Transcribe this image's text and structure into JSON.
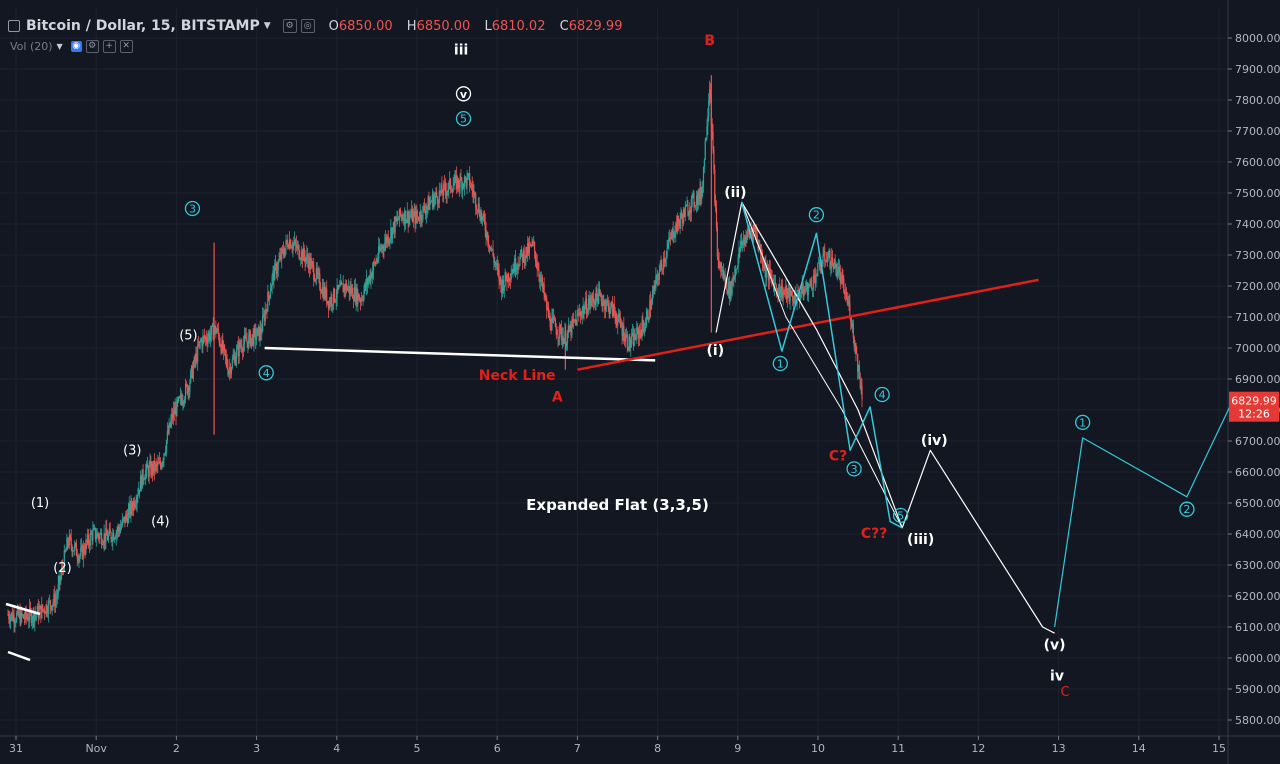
{
  "header": {
    "symbol": "Bitcoin / Dollar, 15, BITSTAMP",
    "open_key": "O",
    "open": "6850.00",
    "high_key": "H",
    "high": "6850.00",
    "low_key": "L",
    "low": "6810.02",
    "close_key": "C",
    "close": "6829.99"
  },
  "volume": {
    "label": "Vol (20)"
  },
  "price_tag": {
    "price": "6829.99",
    "countdown": "12:26"
  },
  "colors": {
    "background": "#131722",
    "up": "#26a69a",
    "down": "#ef5350",
    "neckline": "#ffffff",
    "trendline": "#e0201b",
    "wave_cyan": "#35c8d8",
    "wave_white": "#ffffff",
    "label_red": "#e0201b",
    "axis_text": "#b2b5be"
  },
  "chart_data": {
    "type": "candlestick",
    "title": "",
    "xlabel": "",
    "ylabel": "",
    "ylim": [
      5750,
      8050
    ],
    "xlim": [
      -0.3,
      14.97
    ],
    "y_ticks": [
      "8000.00",
      "7900.00",
      "7800.00",
      "7700.00",
      "7600.00",
      "7500.00",
      "7400.00",
      "7300.00",
      "7200.00",
      "7100.00",
      "7000.00",
      "6900.00",
      "6800.00",
      "6700.00",
      "6600.00",
      "6500.00",
      "6400.00",
      "6300.00",
      "6200.00",
      "6100.00",
      "6000.00",
      "5900.00",
      "5800.00"
    ],
    "x_ticks": [
      {
        "label": "31",
        "x": -0.2
      },
      {
        "label": "Nov",
        "x": 0.8
      },
      {
        "label": "2",
        "x": 1.8
      },
      {
        "label": "3",
        "x": 2.8
      },
      {
        "label": "4",
        "x": 3.8
      },
      {
        "label": "5",
        "x": 4.8
      },
      {
        "label": "6",
        "x": 5.8
      },
      {
        "label": "7",
        "x": 6.8
      },
      {
        "label": "8",
        "x": 7.8
      },
      {
        "label": "9",
        "x": 8.8
      },
      {
        "label": "10",
        "x": 9.8
      },
      {
        "label": "11",
        "x": 10.8
      },
      {
        "label": "12",
        "x": 11.8
      },
      {
        "label": "13",
        "x": 12.8
      },
      {
        "label": "14",
        "x": 13.8
      },
      {
        "label": "15",
        "x": 14.8
      }
    ],
    "grid": true,
    "price_path": [
      [
        -0.3,
        6140
      ],
      [
        -0.1,
        6130
      ],
      [
        0.1,
        6150
      ],
      [
        0.3,
        6190
      ],
      [
        0.45,
        6380
      ],
      [
        0.6,
        6330
      ],
      [
        0.75,
        6400
      ],
      [
        0.95,
        6390
      ],
      [
        1.1,
        6420
      ],
      [
        1.25,
        6490
      ],
      [
        1.4,
        6600
      ],
      [
        1.6,
        6620
      ],
      [
        1.75,
        6780
      ],
      [
        1.95,
        6880
      ],
      [
        2.1,
        7020
      ],
      [
        2.3,
        7060
      ],
      [
        2.45,
        6930
      ],
      [
        2.6,
        7010
      ],
      [
        2.85,
        7050
      ],
      [
        3.0,
        7230
      ],
      [
        3.2,
        7350
      ],
      [
        3.45,
        7280
      ],
      [
        3.7,
        7150
      ],
      [
        3.9,
        7200
      ],
      [
        4.1,
        7160
      ],
      [
        4.35,
        7320
      ],
      [
        4.6,
        7430
      ],
      [
        4.8,
        7420
      ],
      [
        5.0,
        7480
      ],
      [
        5.25,
        7530
      ],
      [
        5.45,
        7540
      ],
      [
        5.65,
        7390
      ],
      [
        5.85,
        7200
      ],
      [
        6.05,
        7280
      ],
      [
        6.25,
        7330
      ],
      [
        6.45,
        7090
      ],
      [
        6.65,
        7030
      ],
      [
        6.85,
        7120
      ],
      [
        7.05,
        7170
      ],
      [
        7.25,
        7120
      ],
      [
        7.45,
        7010
      ],
      [
        7.65,
        7080
      ],
      [
        7.8,
        7230
      ],
      [
        8.0,
        7380
      ],
      [
        8.2,
        7460
      ],
      [
        8.35,
        7500
      ],
      [
        8.45,
        7860
      ],
      [
        8.55,
        7280
      ],
      [
        8.7,
        7180
      ],
      [
        8.85,
        7340
      ],
      [
        9.0,
        7390
      ],
      [
        9.15,
        7250
      ],
      [
        9.3,
        7190
      ],
      [
        9.5,
        7160
      ],
      [
        9.7,
        7200
      ],
      [
        9.9,
        7300
      ],
      [
        10.05,
        7250
      ],
      [
        10.2,
        7120
      ],
      [
        10.35,
        6850
      ]
    ],
    "spikes": [
      {
        "x": 2.27,
        "high": 7340,
        "low": 6720
      },
      {
        "x": 8.47,
        "high": 7880,
        "low": 7050
      },
      {
        "x": 6.65,
        "high": 7070,
        "low": 6930
      }
    ],
    "neckline": [
      [
        2.9,
        7000
      ],
      [
        7.77,
        6960
      ]
    ],
    "trendline": [
      [
        6.8,
        6930
      ],
      [
        12.55,
        7220
      ]
    ],
    "projection_white": [
      [
        8.53,
        7050
      ],
      [
        8.85,
        7470
      ],
      [
        9.78,
        7060
      ],
      [
        10.3,
        6800
      ],
      [
        10.85,
        6420
      ],
      [
        11.2,
        6670
      ],
      [
        12.6,
        6100
      ],
      [
        12.75,
        6080
      ]
    ],
    "projection_white_upper": [
      [
        8.85,
        7470
      ],
      [
        9.4,
        7100
      ],
      [
        10.1,
        6800
      ],
      [
        10.85,
        6420
      ]
    ],
    "projection_cyan": [
      [
        8.85,
        7470
      ],
      [
        9.35,
        6990
      ],
      [
        9.78,
        7370
      ],
      [
        10.2,
        6670
      ],
      [
        10.45,
        6810
      ],
      [
        10.7,
        6440
      ],
      [
        10.85,
        6420
      ]
    ],
    "projection_cyan2": [
      [
        12.75,
        6100
      ],
      [
        13.1,
        6710
      ],
      [
        14.4,
        6520
      ],
      [
        14.97,
        6830
      ]
    ],
    "annotations": [
      {
        "text": "(1)",
        "x": 0.1,
        "y": 6500,
        "color": "white",
        "style": "plain"
      },
      {
        "text": "(2)",
        "x": 0.38,
        "y": 6290,
        "color": "white",
        "style": "plain"
      },
      {
        "text": "(3)",
        "x": 1.25,
        "y": 6670,
        "color": "white",
        "style": "plain"
      },
      {
        "text": "(4)",
        "x": 1.6,
        "y": 6440,
        "color": "white",
        "style": "plain"
      },
      {
        "text": "(5)",
        "x": 1.95,
        "y": 7040,
        "color": "white",
        "style": "plain"
      },
      {
        "text": "3",
        "x": 2.0,
        "y": 7450,
        "color": "cyan",
        "style": "circle"
      },
      {
        "text": "4",
        "x": 2.92,
        "y": 6920,
        "color": "cyan",
        "style": "circle"
      },
      {
        "text": "iii",
        "x": 5.35,
        "y": 7960,
        "color": "white",
        "style": "bold"
      },
      {
        "text": "v",
        "x": 5.38,
        "y": 7820,
        "color": "white",
        "style": "circle"
      },
      {
        "text": "5",
        "x": 5.38,
        "y": 7740,
        "color": "cyan",
        "style": "circle"
      },
      {
        "text": "B",
        "x": 8.45,
        "y": 7990,
        "color": "red",
        "style": "bold"
      },
      {
        "text": "(ii)",
        "x": 8.77,
        "y": 7500,
        "color": "white",
        "style": "bold"
      },
      {
        "text": "(i)",
        "x": 8.52,
        "y": 6990,
        "color": "white",
        "style": "bold"
      },
      {
        "text": "2",
        "x": 9.78,
        "y": 7430,
        "color": "cyan",
        "style": "circle"
      },
      {
        "text": "1",
        "x": 9.33,
        "y": 6950,
        "color": "cyan",
        "style": "circle"
      },
      {
        "text": "Neck Line",
        "x": 6.05,
        "y": 6910,
        "color": "red",
        "style": "bold"
      },
      {
        "text": "A",
        "x": 6.55,
        "y": 6840,
        "color": "red",
        "style": "bold"
      },
      {
        "text": "4",
        "x": 10.6,
        "y": 6850,
        "color": "cyan",
        "style": "circle"
      },
      {
        "text": "C?",
        "x": 10.05,
        "y": 6650,
        "color": "red",
        "style": "bold"
      },
      {
        "text": "3",
        "x": 10.25,
        "y": 6610,
        "color": "cyan",
        "style": "circle"
      },
      {
        "text": "(iv)",
        "x": 11.25,
        "y": 6700,
        "color": "white",
        "style": "bold"
      },
      {
        "text": "Expanded Flat (3,3,5)",
        "x": 7.3,
        "y": 6490,
        "color": "white",
        "style": "bold"
      },
      {
        "text": "C??",
        "x": 10.5,
        "y": 6400,
        "color": "red",
        "style": "bold"
      },
      {
        "text": "5",
        "x": 10.83,
        "y": 6460,
        "color": "cyan",
        "style": "circle"
      },
      {
        "text": "(iii)",
        "x": 11.08,
        "y": 6380,
        "color": "white",
        "style": "bold"
      },
      {
        "text": "1",
        "x": 13.1,
        "y": 6760,
        "color": "cyan",
        "style": "circle"
      },
      {
        "text": "2",
        "x": 14.4,
        "y": 6480,
        "color": "cyan",
        "style": "circle"
      },
      {
        "text": "(v)",
        "x": 12.75,
        "y": 6040,
        "color": "white",
        "style": "bold"
      },
      {
        "text": "iv",
        "x": 12.78,
        "y": 5940,
        "color": "white",
        "style": "bold"
      },
      {
        "text": "C",
        "x": 12.88,
        "y": 5890,
        "color": "red",
        "style": "plain"
      }
    ]
  }
}
